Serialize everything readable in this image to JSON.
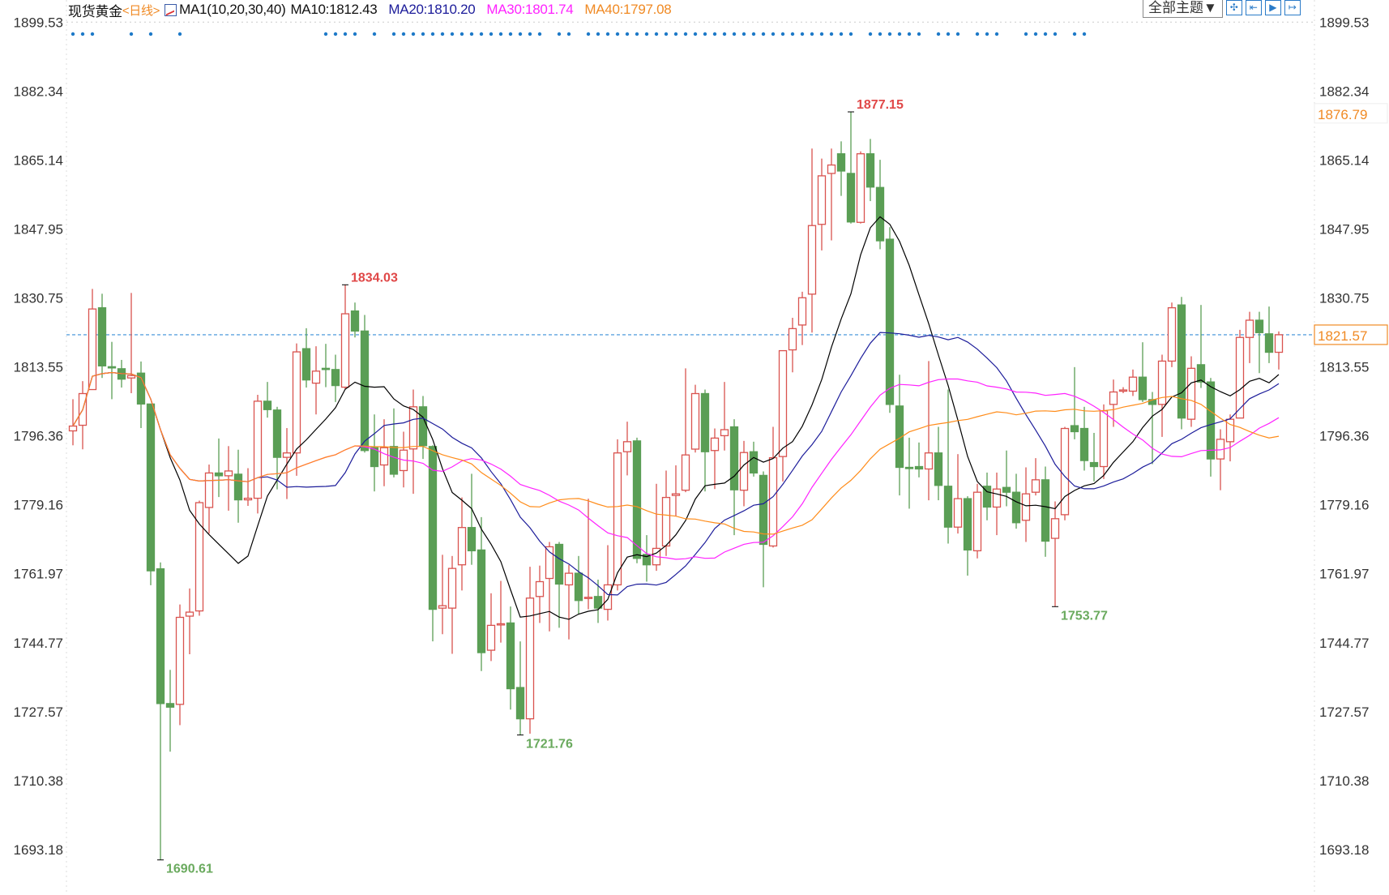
{
  "header": {
    "symbol": "现货黄金",
    "period": "<日线>",
    "indicator": "MA1(10,20,30,40)",
    "ma10": "MA10:1812.43",
    "ma20": "MA20:1810.20",
    "ma30": "MA30:1801.74",
    "ma40": "MA40:1797.08"
  },
  "toolbar": {
    "theme_label": "全部主题▼",
    "icons": [
      "crosshair-icon",
      "zoom-range-icon",
      "play-step-icon",
      "exit-icon"
    ]
  },
  "chart_data": {
    "type": "candlestick",
    "ohlc_order": [
      "open",
      "high",
      "low",
      "close"
    ],
    "ylim": [
      1690.61,
      1899.53
    ],
    "grid": false,
    "y_ticks": [
      "1899.53",
      "1882.34",
      "1865.14",
      "1847.95",
      "1830.75",
      "1813.55",
      "1796.36",
      "1779.16",
      "1761.97",
      "1744.77",
      "1727.57",
      "1710.38",
      "1693.18"
    ],
    "current_price": "1821.57",
    "right_marker": "1876.79",
    "annotations": [
      {
        "label": "1877.15",
        "candle": 81,
        "kind": "high"
      },
      {
        "label": "1834.03",
        "candle": 29,
        "kind": "high"
      },
      {
        "label": "1690.61",
        "candle": 10,
        "kind": "low"
      },
      {
        "label": "1721.76",
        "candle": 47,
        "kind": "low"
      },
      {
        "label": "1753.77",
        "candle": 102,
        "kind": "low"
      }
    ],
    "moving_averages": [
      {
        "name": "MA10",
        "period": 10,
        "color": "#000000"
      },
      {
        "name": "MA20",
        "period": 20,
        "color": "#1c1c9a"
      },
      {
        "name": "MA30",
        "period": 30,
        "color": "#ff22ff"
      },
      {
        "name": "MA40",
        "period": 40,
        "color": "#ff8c1a"
      }
    ],
    "colors": {
      "up": "#d9534f",
      "down": "#5a9e55",
      "high_label": "#e04848",
      "low_label": "#6aaa5e",
      "signal": "#1e7ac8",
      "current_line": "#3a8fd8",
      "marker": "#f08a24"
    },
    "signal_dots": [
      1,
      2,
      3,
      7,
      9,
      12,
      27,
      28,
      29,
      30,
      32,
      34,
      35,
      36,
      37,
      38,
      39,
      40,
      41,
      42,
      43,
      44,
      45,
      46,
      47,
      48,
      49,
      51,
      52,
      54,
      55,
      56,
      57,
      58,
      59,
      60,
      61,
      62,
      63,
      64,
      65,
      66,
      67,
      68,
      69,
      70,
      71,
      72,
      73,
      74,
      75,
      76,
      77,
      78,
      79,
      80,
      81,
      83,
      84,
      85,
      86,
      87,
      88,
      90,
      91,
      92,
      94,
      95,
      96,
      99,
      100,
      101,
      102,
      104,
      105
    ],
    "candles": [
      [
        1797.6,
        1805.5,
        1794.0,
        1798.8
      ],
      [
        1799.0,
        1810,
        1793,
        1806.9
      ],
      [
        1807.9,
        1833,
        1807.9,
        1828.0
      ],
      [
        1828.3,
        1831.8,
        1810.8,
        1813.8
      ],
      [
        1813.6,
        1819.8,
        1805.5,
        1813.3
      ],
      [
        1813.1,
        1815.3,
        1808.4,
        1810.5
      ],
      [
        1810.8,
        1832,
        1807,
        1811.4
      ],
      [
        1812,
        1814.9,
        1798.3,
        1804.3
      ],
      [
        1804.3,
        1804.3,
        1759.1,
        1762.7
      ],
      [
        1763.2,
        1764.8,
        1690.61,
        1729.6
      ],
      [
        1729.6,
        1738,
        1717.6,
        1728.7
      ],
      [
        1729.4,
        1754.3,
        1724.2,
        1751.1
      ],
      [
        1751.4,
        1758.3,
        1741.9,
        1752.4
      ],
      [
        1752.7,
        1780.2,
        1751.5,
        1779.7
      ],
      [
        1778.5,
        1789.2,
        1772,
        1787.1
      ],
      [
        1787.1,
        1795.7,
        1781.1,
        1786.4
      ],
      [
        1786.4,
        1793.8,
        1777.7,
        1787.6
      ],
      [
        1786.8,
        1792.9,
        1774.7,
        1780.4
      ],
      [
        1780.4,
        1788.3,
        1778.9,
        1780.8
      ],
      [
        1780.8,
        1806.6,
        1777,
        1805
      ],
      [
        1805,
        1809.8,
        1800.9,
        1802.9
      ],
      [
        1802.8,
        1803.6,
        1783,
        1791
      ],
      [
        1791,
        1798.3,
        1780.6,
        1792.1
      ],
      [
        1792.1,
        1819.4,
        1786.4,
        1817.3
      ],
      [
        1818.1,
        1823.2,
        1808.4,
        1810.3
      ],
      [
        1809.5,
        1818.7,
        1801.7,
        1812.5
      ],
      [
        1813.2,
        1819.3,
        1808.5,
        1813.1
      ],
      [
        1812.9,
        1816.6,
        1804.8,
        1808.9
      ],
      [
        1808.5,
        1834.03,
        1808.0,
        1826.8
      ],
      [
        1827.5,
        1829.6,
        1820.9,
        1822.5
      ],
      [
        1822.5,
        1826.5,
        1792.2,
        1792.7
      ],
      [
        1793.4,
        1801.7,
        1782.5,
        1788.7
      ],
      [
        1789.1,
        1800.5,
        1783.8,
        1793.4
      ],
      [
        1793.7,
        1803.2,
        1786.0,
        1786.8
      ],
      [
        1787.7,
        1797.4,
        1783.5,
        1792.8
      ],
      [
        1793.1,
        1807.9,
        1781.9,
        1803.6
      ],
      [
        1803.6,
        1806.3,
        1790.6,
        1793.9
      ],
      [
        1793.7,
        1794.0,
        1745.1,
        1753.1
      ],
      [
        1753.4,
        1766.7,
        1746.9,
        1754.0
      ],
      [
        1753.4,
        1766.4,
        1742,
        1763.3
      ],
      [
        1764.2,
        1781,
        1757.8,
        1773.5
      ],
      [
        1773.5,
        1786.9,
        1764.2,
        1767.7
      ],
      [
        1767.9,
        1776.1,
        1737.7,
        1742.3
      ],
      [
        1742.9,
        1757.1,
        1740.2,
        1749.1
      ],
      [
        1749.3,
        1760.2,
        1744.8,
        1749.5
      ],
      [
        1749.7,
        1753.8,
        1728.1,
        1733.3
      ],
      [
        1733.6,
        1745.1,
        1721.76,
        1725.8
      ],
      [
        1725.8,
        1763.7,
        1722.1,
        1755.9
      ],
      [
        1756.3,
        1764,
        1749.7,
        1760
      ],
      [
        1760.8,
        1769.9,
        1747.6,
        1768.7
      ],
      [
        1769.3,
        1769.9,
        1748.5,
        1759.4
      ],
      [
        1759.2,
        1764.2,
        1745.6,
        1762.1
      ],
      [
        1762.1,
        1766.4,
        1751.8,
        1755.3
      ],
      [
        1755.9,
        1780.7,
        1753.1,
        1756.1
      ],
      [
        1756.3,
        1760.5,
        1749.7,
        1753.4
      ],
      [
        1753.1,
        1769.1,
        1750.3,
        1759.2
      ],
      [
        1759.2,
        1795.5,
        1757.8,
        1792.1
      ],
      [
        1792.4,
        1799.9,
        1786.5,
        1794.9
      ],
      [
        1795.1,
        1795.9,
        1764.6,
        1765.8
      ],
      [
        1766.8,
        1771.6,
        1760,
        1764.2
      ],
      [
        1764.2,
        1784.4,
        1762.7,
        1768.3
      ],
      [
        1768.9,
        1787.7,
        1766.4,
        1781
      ],
      [
        1781.5,
        1789,
        1776.3,
        1781.9
      ],
      [
        1782.8,
        1813.2,
        1782.3,
        1791.6
      ],
      [
        1793.05,
        1809.1,
        1792.2,
        1806.9
      ],
      [
        1806.9,
        1807.9,
        1782.5,
        1792.4
      ],
      [
        1792.7,
        1798.2,
        1783.1,
        1795.8
      ],
      [
        1796.4,
        1809.8,
        1792.7,
        1797.9
      ],
      [
        1798.6,
        1800.5,
        1771.6,
        1782.9
      ],
      [
        1782.8,
        1795.1,
        1778.8,
        1792.2
      ],
      [
        1792.4,
        1794.9,
        1786.2,
        1787.1
      ],
      [
        1786.5,
        1787.5,
        1758.6,
        1769.3
      ],
      [
        1768.9,
        1798.6,
        1768.5,
        1790.9
      ],
      [
        1791.2,
        1817.6,
        1785,
        1817.6
      ],
      [
        1817.8,
        1825.8,
        1812.2,
        1823.1
      ],
      [
        1824,
        1832.3,
        1819,
        1830.8
      ],
      [
        1831.7,
        1868,
        1822.1,
        1848.8
      ],
      [
        1849.1,
        1865.5,
        1842.6,
        1861.2
      ],
      [
        1861.8,
        1868,
        1845.1,
        1863.9
      ],
      [
        1866.7,
        1869.8,
        1856.2,
        1862.4
      ],
      [
        1861.8,
        1877.15,
        1849.3,
        1849.7
      ],
      [
        1849.6,
        1867.3,
        1849.3,
        1866.7
      ],
      [
        1866.7,
        1870.4,
        1854.9,
        1858.4
      ],
      [
        1858.3,
        1865.2,
        1842.9,
        1845.0
      ],
      [
        1845.4,
        1848.4,
        1802.1,
        1804.2
      ],
      [
        1803.8,
        1811.6,
        1781.5,
        1788.5
      ],
      [
        1788.5,
        1795.9,
        1778.2,
        1788.3
      ],
      [
        1788.7,
        1794.7,
        1786,
        1788.1
      ],
      [
        1788.1,
        1815,
        1780.3,
        1792.1
      ],
      [
        1792.1,
        1798.6,
        1780.3,
        1784
      ],
      [
        1783.8,
        1807.9,
        1769.5,
        1773.6
      ],
      [
        1773.6,
        1791.8,
        1772,
        1780.7
      ],
      [
        1780.7,
        1781.3,
        1761.5,
        1767.9
      ],
      [
        1767.7,
        1784.4,
        1765.8,
        1782.3
      ],
      [
        1783.8,
        1787.2,
        1775.3,
        1778.6
      ],
      [
        1778.6,
        1787.2,
        1771.6,
        1783.1
      ],
      [
        1783.5,
        1792.7,
        1778.8,
        1782.3
      ],
      [
        1782.3,
        1786.9,
        1773.2,
        1774.7
      ],
      [
        1775.3,
        1788.5,
        1769.9,
        1781.9
      ],
      [
        1782.3,
        1790.8,
        1781.5,
        1785.4
      ],
      [
        1785.4,
        1788.7,
        1766.2,
        1770.1
      ],
      [
        1770.8,
        1780,
        1753.77,
        1775.7
      ],
      [
        1776.7,
        1798.6,
        1775.3,
        1798.2
      ],
      [
        1798.9,
        1813.5,
        1795.5,
        1797.4
      ],
      [
        1798.2,
        1803.6,
        1787.7,
        1790.2
      ],
      [
        1789.7,
        1797.1,
        1785,
        1788.7
      ],
      [
        1788.7,
        1804.2,
        1785.6,
        1802.6
      ],
      [
        1804.2,
        1810.4,
        1798.6,
        1807.3
      ],
      [
        1807.5,
        1808.5,
        1807,
        1807.8
      ],
      [
        1807.5,
        1812.9,
        1806.3,
        1811
      ],
      [
        1811,
        1819.7,
        1804.8,
        1805.4
      ],
      [
        1805.4,
        1807.3,
        1789.3,
        1804.2
      ],
      [
        1804.2,
        1816.6,
        1796.1,
        1815
      ],
      [
        1815,
        1829.6,
        1813.5,
        1828.3
      ],
      [
        1829,
        1831,
        1798,
        1800.8
      ],
      [
        1800.5,
        1816.2,
        1798.6,
        1813.2
      ],
      [
        1814.1,
        1829,
        1808.3,
        1809.8
      ],
      [
        1809.8,
        1810.8,
        1786.2,
        1790.6
      ],
      [
        1790.6,
        1798,
        1782.8,
        1795.5
      ],
      [
        1794.9,
        1801.7,
        1790,
        1800.5
      ],
      [
        1800.8,
        1822.8,
        1800.8,
        1820.9
      ],
      [
        1820.9,
        1827.3,
        1814.5,
        1825.2
      ],
      [
        1825.2,
        1827.3,
        1812,
        1822.1
      ],
      [
        1821.8,
        1828.6,
        1814.5,
        1817.2
      ],
      [
        1817.2,
        1822.4,
        1812.9,
        1821.57
      ]
    ]
  }
}
